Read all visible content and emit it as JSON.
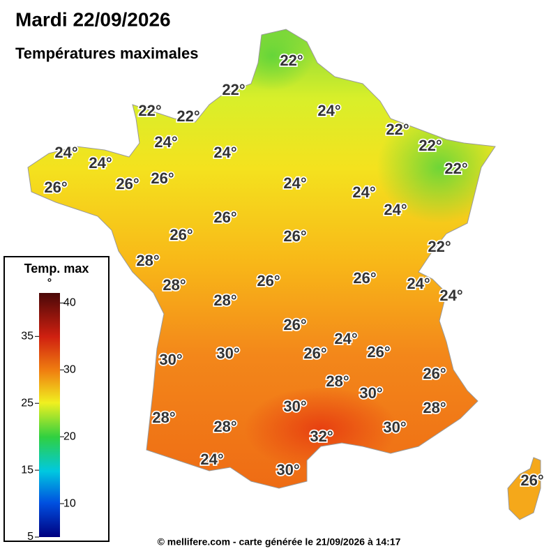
{
  "header": {
    "title": "Mardi 22/09/2026",
    "subtitle": "Températures maximales"
  },
  "labels": [
    "22°",
    "22°",
    "22°",
    "22°",
    "24°",
    "22°",
    "22°",
    "24°",
    "24°",
    "24°",
    "24°",
    "22°",
    "26°",
    "26°",
    "26°",
    "24°",
    "24°",
    "24°",
    "26°",
    "26°",
    "26°",
    "22°",
    "28°",
    "26°",
    "26°",
    "24°",
    "24°",
    "28°",
    "28°",
    "26°",
    "24°",
    "26°",
    "26°",
    "30°",
    "30°",
    "26°",
    "28°",
    "30°",
    "30°",
    "28°",
    "28°",
    "28°",
    "30°",
    "32°",
    "24°",
    "30°",
    "26°"
  ],
  "legend": {
    "title": "Temp. max",
    "unit": "°",
    "range": [
      5,
      41.5
    ],
    "ticks": [
      5,
      10,
      15,
      20,
      25,
      30,
      35,
      40
    ]
  },
  "footer": "© mellifere.com - carte générée le 21/09/2026 à 14:17"
}
